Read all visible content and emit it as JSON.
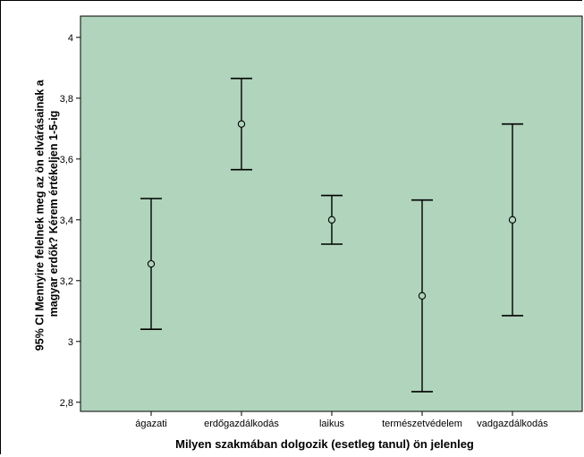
{
  "chart_data": {
    "type": "errorbar",
    "xlabel": "Milyen szakmában dolgozik (esetleg tanul) ön jelenleg",
    "ylabel_lines": [
      "95% CI Mennyire felelnek meg az ön elvárásainak a",
      "magyar erdők? Kérem értékeljen 1-5-ig"
    ],
    "categories": [
      "ágazati",
      "erdőgazdálkodás",
      "laikus",
      "természetvédelem",
      "vadgazdálkodás"
    ],
    "means": [
      3.255,
      3.715,
      3.4,
      3.15,
      3.4
    ],
    "lower": [
      3.04,
      3.565,
      3.32,
      2.835,
      3.085
    ],
    "upper": [
      3.47,
      3.865,
      3.48,
      3.465,
      3.715
    ],
    "ylim": [
      2.77,
      4.07
    ],
    "yticks": [
      "2,8",
      "3",
      "3,2",
      "3,4",
      "3,6",
      "3,8",
      "4"
    ],
    "ytick_values": [
      2.8,
      3.0,
      3.2,
      3.4,
      3.6,
      3.8,
      4.0
    ],
    "grid": false,
    "colors": {
      "plot_background": "#b0d4bc",
      "error_bar": "#000000",
      "marker": "#000000"
    }
  }
}
